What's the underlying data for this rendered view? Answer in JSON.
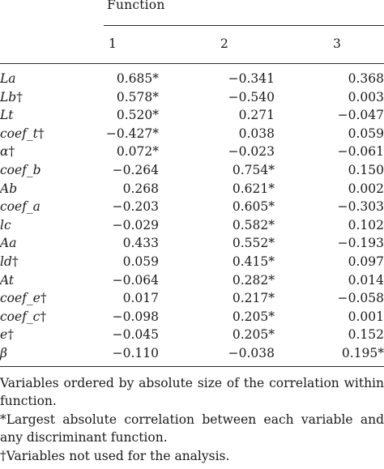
{
  "table": {
    "group_header": "Function",
    "columns": [
      "1",
      "2",
      "3"
    ],
    "rows": [
      {
        "variable": "La",
        "dagger": "",
        "values": [
          "0.685*",
          "−0.341",
          "0.368"
        ]
      },
      {
        "variable": "Lb",
        "dagger": "†",
        "values": [
          "0.578*",
          "−0.540",
          "0.003"
        ]
      },
      {
        "variable": "Lt",
        "dagger": "",
        "values": [
          "0.520*",
          "0.271",
          "−0.047"
        ]
      },
      {
        "variable": "coef_t",
        "dagger": "†",
        "values": [
          "−0.427*",
          "0.038",
          "0.059"
        ]
      },
      {
        "variable": "α",
        "dagger": "†",
        "values": [
          "0.072*",
          "−0.023",
          "−0.061"
        ]
      },
      {
        "variable": "coef_b",
        "dagger": "",
        "values": [
          "−0.264",
          "0.754*",
          "0.150"
        ]
      },
      {
        "variable": "Ab",
        "dagger": "",
        "values": [
          "0.268",
          "0.621*",
          "0.002"
        ]
      },
      {
        "variable": "coef_a",
        "dagger": "",
        "values": [
          "−0.203",
          "0.605*",
          "−0.303"
        ]
      },
      {
        "variable": "lc",
        "dagger": "",
        "values": [
          "−0.029",
          "0.582*",
          "0.102"
        ]
      },
      {
        "variable": "Aa",
        "dagger": "",
        "values": [
          "0.433",
          "0.552*",
          "−0.193"
        ]
      },
      {
        "variable": "ld",
        "dagger": "†",
        "values": [
          "0.059",
          "0.415*",
          "0.097"
        ]
      },
      {
        "variable": "At",
        "dagger": "",
        "values": [
          "−0.064",
          "0.282*",
          "0.014"
        ]
      },
      {
        "variable": "coef_e",
        "dagger": "†",
        "values": [
          "0.017",
          "0.217*",
          "−0.058"
        ]
      },
      {
        "variable": "coef_c",
        "dagger": "†",
        "values": [
          "−0.098",
          "0.205*",
          "0.001"
        ]
      },
      {
        "variable": "e",
        "dagger": "†",
        "values": [
          "−0.045",
          "0.205*",
          "0.152"
        ]
      },
      {
        "variable": "β",
        "dagger": "",
        "values": [
          "−0.110",
          "−0.038",
          "0.195*"
        ]
      }
    ]
  },
  "notes": [
    "Variables ordered by absolute size of the correlation within function.",
    "*Largest absolute correlation between each variable and any discriminant function.",
    "†Variables not used for the analysis."
  ]
}
